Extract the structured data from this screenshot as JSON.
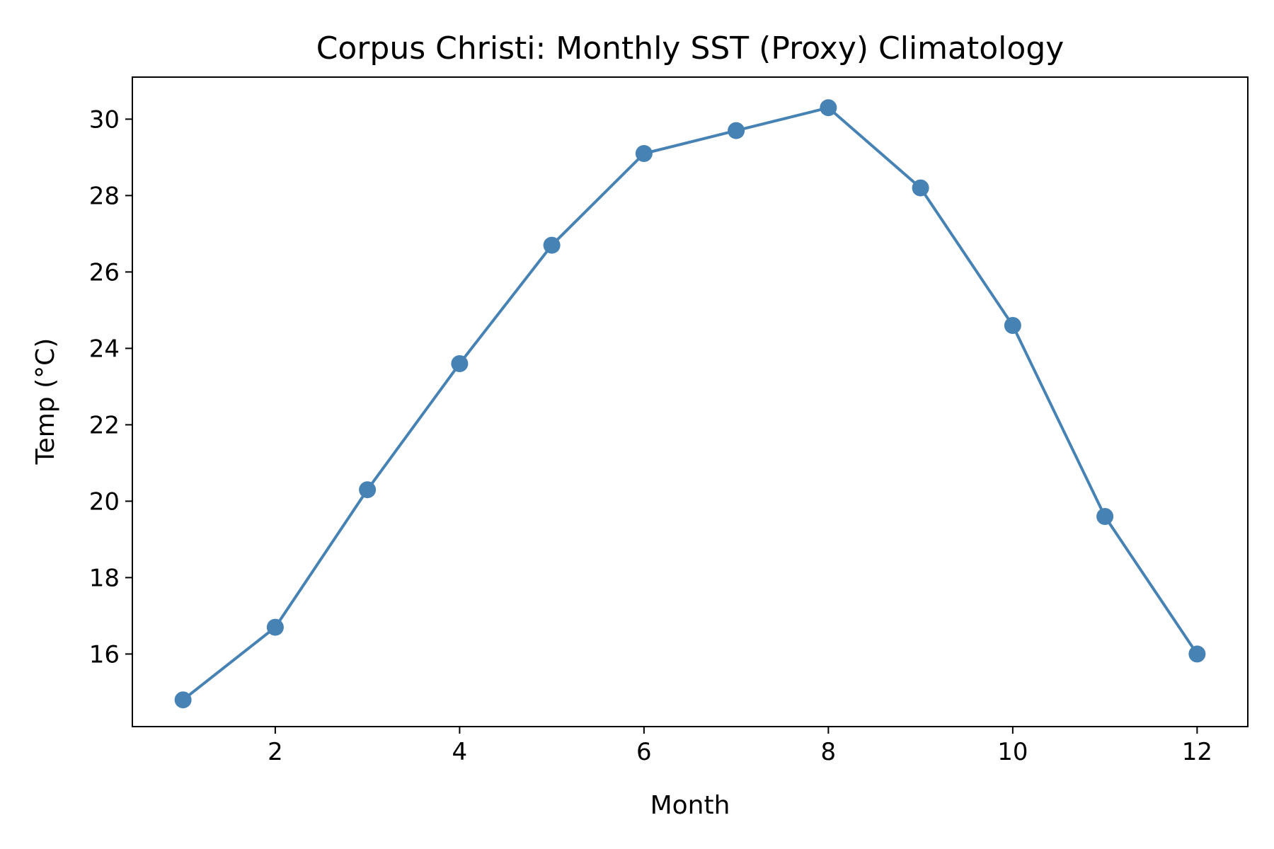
{
  "chart_data": {
    "type": "line",
    "title": "Corpus Christi: Monthly SST (Proxy) Climatology",
    "xlabel": "Month",
    "ylabel": "Temp (°C)",
    "x": [
      1,
      2,
      3,
      4,
      5,
      6,
      7,
      8,
      9,
      10,
      11,
      12
    ],
    "series": [
      {
        "values": [
          14.8,
          16.7,
          20.3,
          23.6,
          26.7,
          29.1,
          29.7,
          30.3,
          28.2,
          24.6,
          19.6,
          16.0
        ],
        "color": "#4682b4",
        "marker": "circle"
      }
    ],
    "xlim": [
      0.45,
      12.55
    ],
    "ylim": [
      14.1,
      31.1
    ],
    "xticks": [
      2,
      4,
      6,
      8,
      10,
      12
    ],
    "yticks": [
      16,
      18,
      20,
      22,
      24,
      26,
      28,
      30
    ],
    "grid": false,
    "legend": "none"
  }
}
